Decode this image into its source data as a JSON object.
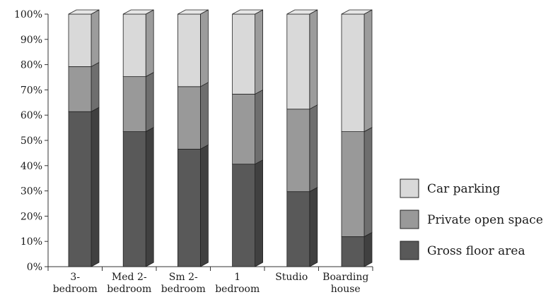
{
  "chart_data": {
    "type": "bar",
    "stacked": true,
    "percent_stacked": true,
    "three_d": true,
    "categories": [
      [
        "3-",
        "bedroom"
      ],
      [
        "Med 2-",
        "bedroom"
      ],
      [
        "Sm 2-",
        "bedroom"
      ],
      [
        "1",
        "bedroom"
      ],
      [
        "Studio"
      ],
      [
        "Boarding",
        "house"
      ]
    ],
    "series": [
      {
        "name": "Gross floor area",
        "values": [
          62,
          54,
          47,
          41,
          30,
          12
        ],
        "color": "#595959"
      },
      {
        "name": "Private open space",
        "values": [
          18,
          22,
          25,
          28,
          33,
          42
        ],
        "color": "#999999"
      },
      {
        "name": "Car parking",
        "values": [
          21,
          25,
          29,
          32,
          38,
          47
        ],
        "color": "#d9d9d9"
      }
    ],
    "ylim": [
      0,
      100
    ],
    "yticks": [
      "0%",
      "10%",
      "20%",
      "30%",
      "40%",
      "50%",
      "60%",
      "70%",
      "80%",
      "90%",
      "100%"
    ],
    "legend_position": "right",
    "legend_order": [
      "Car parking",
      "Private open space",
      "Gross floor area"
    ],
    "grid": false
  }
}
